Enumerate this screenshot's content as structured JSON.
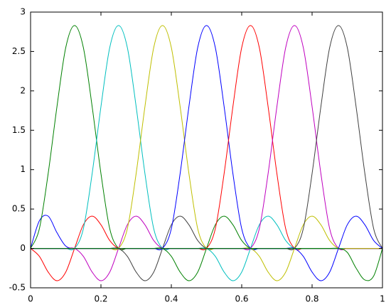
{
  "chart_data": {
    "type": "line",
    "x": [
      0,
      0.025,
      0.05,
      0.075,
      0.1,
      0.125,
      0.15,
      0.175,
      0.2,
      0.225,
      0.25,
      0.275,
      0.3,
      0.325,
      0.35,
      0.375,
      0.4,
      0.425,
      0.45,
      0.475,
      0.5,
      0.525,
      0.55,
      0.575,
      0.6,
      0.625,
      0.65,
      0.675,
      0.7,
      0.725,
      0.75,
      0.775,
      0.8,
      0.825,
      0.85,
      0.875,
      0.9,
      0.925,
      0.95,
      0.975,
      1
    ],
    "series": [
      {
        "color": "#0000ff",
        "values": [
          0,
          0.35,
          0.41,
          0.2,
          0.03,
          0,
          0,
          0,
          0,
          0,
          0,
          0,
          0,
          0,
          0,
          0,
          0,
          0,
          0,
          0,
          0,
          0,
          0,
          0,
          0,
          0,
          0,
          0,
          0,
          0,
          0,
          0,
          0,
          0,
          0,
          0,
          0,
          0,
          0,
          0,
          0
        ]
      },
      {
        "color": "#008000",
        "values": [
          0,
          0.25,
          0.95,
          1.8,
          2.55,
          2.83,
          2.55,
          1.8,
          0.95,
          0.25,
          0,
          0,
          0,
          0,
          0,
          0,
          0,
          0,
          0,
          0,
          0,
          0,
          0,
          0,
          0,
          0,
          0,
          0,
          0,
          0,
          0,
          0,
          0,
          0,
          0,
          0,
          0,
          0,
          0,
          0,
          0
        ]
      },
      {
        "color": "#ff0000",
        "values": [
          0,
          -0.1,
          -0.3,
          -0.41,
          -0.3,
          0,
          0.3,
          0.41,
          0.3,
          0.1,
          0,
          0,
          0,
          0,
          0,
          0,
          0,
          0,
          0,
          0,
          0,
          0,
          0,
          0,
          0,
          0,
          0,
          0,
          0,
          0,
          0,
          0,
          0,
          0,
          0,
          0,
          0,
          0,
          0,
          0,
          0
        ]
      },
      {
        "color": "#00bfbf",
        "values": [
          0,
          0,
          0,
          0,
          0,
          0,
          0.25,
          0.95,
          1.8,
          2.55,
          2.83,
          2.55,
          1.8,
          0.95,
          0.25,
          0,
          0,
          0,
          0,
          0,
          0,
          0,
          0,
          0,
          0,
          0,
          0,
          0,
          0,
          0,
          0,
          0,
          0,
          0,
          0,
          0,
          0,
          0,
          0,
          0,
          0
        ]
      },
      {
        "color": "#bf00bf",
        "values": [
          0,
          0,
          0,
          0,
          0,
          0,
          -0.1,
          -0.3,
          -0.41,
          -0.3,
          0,
          0.3,
          0.41,
          0.3,
          0.1,
          0,
          0,
          0,
          0,
          0,
          0,
          0,
          0,
          0,
          0,
          0,
          0,
          0,
          0,
          0,
          0,
          0,
          0,
          0,
          0,
          0,
          0,
          0,
          0,
          0,
          0
        ]
      },
      {
        "color": "#bfbf00",
        "values": [
          0,
          0,
          0,
          0,
          0,
          0,
          0,
          0,
          0,
          0,
          0,
          0.25,
          0.95,
          1.8,
          2.55,
          2.83,
          2.55,
          1.8,
          0.95,
          0.25,
          0,
          0,
          0,
          0,
          0,
          0,
          0,
          0,
          0,
          0,
          0,
          0,
          0,
          0,
          0,
          0,
          0,
          0,
          0,
          0,
          0
        ]
      },
      {
        "color": "#404040",
        "values": [
          0,
          0,
          0,
          0,
          0,
          0,
          0,
          0,
          0,
          0,
          0,
          -0.1,
          -0.3,
          -0.41,
          -0.3,
          0,
          0.3,
          0.41,
          0.3,
          0.1,
          0,
          0,
          0,
          0,
          0,
          0,
          0,
          0,
          0,
          0,
          0,
          0,
          0,
          0,
          0,
          0,
          0,
          0,
          0,
          0,
          0
        ]
      },
      {
        "color": "#0000ff",
        "values": [
          0,
          0,
          0,
          0,
          0,
          0,
          0,
          0,
          0,
          0,
          0,
          0,
          0,
          0,
          0,
          0,
          0.25,
          0.95,
          1.8,
          2.55,
          2.83,
          2.55,
          1.8,
          0.95,
          0.25,
          0,
          0,
          0,
          0,
          0,
          0,
          0,
          0,
          0,
          0,
          0,
          0,
          0,
          0,
          0,
          0
        ]
      },
      {
        "color": "#008000",
        "values": [
          0,
          0,
          0,
          0,
          0,
          0,
          0,
          0,
          0,
          0,
          0,
          0,
          0,
          0,
          0,
          0,
          -0.1,
          -0.3,
          -0.41,
          -0.3,
          0,
          0.3,
          0.41,
          0.3,
          0.1,
          0,
          0,
          0,
          0,
          0,
          0,
          0,
          0,
          0,
          0,
          0,
          0,
          0,
          0,
          0,
          0
        ]
      },
      {
        "color": "#ff0000",
        "values": [
          0,
          0,
          0,
          0,
          0,
          0,
          0,
          0,
          0,
          0,
          0,
          0,
          0,
          0,
          0,
          0,
          0,
          0,
          0,
          0,
          0,
          0.25,
          0.95,
          1.8,
          2.55,
          2.83,
          2.55,
          1.8,
          0.95,
          0.25,
          0,
          0,
          0,
          0,
          0,
          0,
          0,
          0,
          0,
          0,
          0
        ]
      },
      {
        "color": "#00bfbf",
        "values": [
          0,
          0,
          0,
          0,
          0,
          0,
          0,
          0,
          0,
          0,
          0,
          0,
          0,
          0,
          0,
          0,
          0,
          0,
          0,
          0,
          0,
          -0.1,
          -0.3,
          -0.41,
          -0.3,
          0,
          0.3,
          0.41,
          0.3,
          0.1,
          0,
          0,
          0,
          0,
          0,
          0,
          0,
          0,
          0,
          0,
          0
        ]
      },
      {
        "color": "#bf00bf",
        "values": [
          0,
          0,
          0,
          0,
          0,
          0,
          0,
          0,
          0,
          0,
          0,
          0,
          0,
          0,
          0,
          0,
          0,
          0,
          0,
          0,
          0,
          0,
          0,
          0,
          0,
          0,
          0.25,
          0.95,
          1.8,
          2.55,
          2.83,
          2.55,
          1.8,
          0.95,
          0.25,
          0,
          0,
          0,
          0,
          0,
          0
        ]
      },
      {
        "color": "#bfbf00",
        "values": [
          0,
          0,
          0,
          0,
          0,
          0,
          0,
          0,
          0,
          0,
          0,
          0,
          0,
          0,
          0,
          0,
          0,
          0,
          0,
          0,
          0,
          0,
          0,
          0,
          0,
          0,
          -0.1,
          -0.3,
          -0.41,
          -0.3,
          0,
          0.3,
          0.41,
          0.3,
          0.1,
          0,
          0,
          0,
          0,
          0,
          0
        ]
      },
      {
        "color": "#404040",
        "values": [
          0,
          0,
          0,
          0,
          0,
          0,
          0,
          0,
          0,
          0,
          0,
          0,
          0,
          0,
          0,
          0,
          0,
          0,
          0,
          0,
          0,
          0,
          0,
          0,
          0,
          0,
          0,
          0,
          0,
          0,
          0,
          0.25,
          0.95,
          1.8,
          2.55,
          2.83,
          2.55,
          1.8,
          0.95,
          0.25,
          0
        ]
      },
      {
        "color": "#0000ff",
        "values": [
          0,
          0,
          0,
          0,
          0,
          0,
          0,
          0,
          0,
          0,
          0,
          0,
          0,
          0,
          0,
          0,
          0,
          0,
          0,
          0,
          0,
          0,
          0,
          0,
          0,
          0,
          0,
          0,
          0,
          0,
          0,
          -0.1,
          -0.3,
          -0.41,
          -0.3,
          0,
          0.3,
          0.41,
          0.3,
          0.1,
          0
        ]
      },
      {
        "color": "#008000",
        "values": [
          0,
          0,
          0,
          0,
          0,
          0,
          0,
          0,
          0,
          0,
          0,
          0,
          0,
          0,
          0,
          0,
          0,
          0,
          0,
          0,
          0,
          0,
          0,
          0,
          0,
          0,
          0,
          0,
          0,
          0,
          0,
          0,
          0,
          0,
          0,
          0,
          -0.05,
          -0.25,
          -0.4,
          -0.35,
          0
        ]
      }
    ],
    "xlim": [
      0,
      1
    ],
    "xticks": [
      0,
      0.2,
      0.4,
      0.6,
      0.8,
      1
    ],
    "ylim": [
      -0.5,
      3
    ],
    "yticks": [
      -0.5,
      0,
      0.5,
      1,
      1.5,
      2,
      2.5,
      3
    ],
    "grid": false
  }
}
